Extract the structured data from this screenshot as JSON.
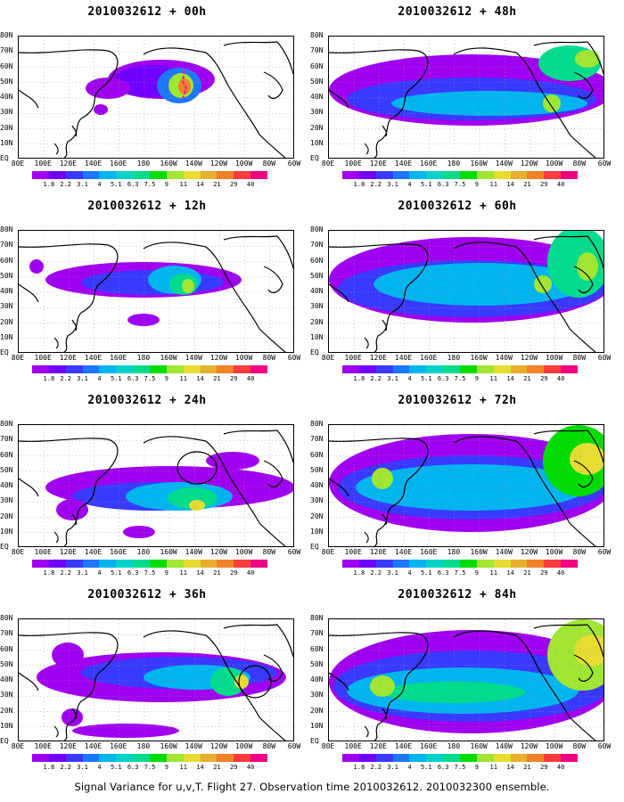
{
  "footer": "Signal Variance for u,v,T. Flight 27. Observation time 2010032612. 2010032300 ensemble.",
  "colorbar": {
    "labels": [
      "1.8",
      "2.2",
      "3.1",
      "4",
      "5.1",
      "6.3",
      "7.5",
      "9",
      "11",
      "14",
      "21",
      "29",
      "40"
    ],
    "colors": [
      "#a000f0",
      "#7000ff",
      "#3a3aff",
      "#1e78ff",
      "#00b4f0",
      "#00d2c8",
      "#00dc8c",
      "#00dc00",
      "#a0e632",
      "#e6dc32",
      "#e6af2d",
      "#f08228",
      "#fa3c3c",
      "#f00082"
    ]
  },
  "axes": {
    "y_labels": [
      "80N",
      "70N",
      "60N",
      "50N",
      "40N",
      "30N",
      "20N",
      "10N",
      "EQ"
    ],
    "x_labels": [
      "80E",
      "100E",
      "120E",
      "140E",
      "160E",
      "180",
      "160W",
      "140W",
      "120W",
      "100W",
      "80W",
      "60W"
    ]
  },
  "chart_data": [
    {
      "type": "heatmap",
      "title": "2010032612 + 00h",
      "x_range": [
        "80E",
        "60W"
      ],
      "y_range": [
        "EQ",
        "80N"
      ],
      "features": [
        {
          "name": "max",
          "value": 40,
          "lon": "160W",
          "lat": "55N"
        }
      ]
    },
    {
      "type": "heatmap",
      "title": "2010032612 + 12h",
      "x_range": [
        "80E",
        "60W"
      ],
      "y_range": [
        "EQ",
        "80N"
      ]
    },
    {
      "type": "heatmap",
      "title": "2010032612 + 24h",
      "x_range": [
        "80E",
        "60W"
      ],
      "y_range": [
        "EQ",
        "80N"
      ]
    },
    {
      "type": "heatmap",
      "title": "2010032612 + 36h",
      "x_range": [
        "80E",
        "60W"
      ],
      "y_range": [
        "EQ",
        "80N"
      ]
    },
    {
      "type": "heatmap",
      "title": "2010032612 + 48h",
      "x_range": [
        "80E",
        "60W"
      ],
      "y_range": [
        "EQ",
        "80N"
      ]
    },
    {
      "type": "heatmap",
      "title": "2010032612 + 60h",
      "x_range": [
        "80E",
        "60W"
      ],
      "y_range": [
        "EQ",
        "80N"
      ]
    },
    {
      "type": "heatmap",
      "title": "2010032612 + 72h",
      "x_range": [
        "80E",
        "60W"
      ],
      "y_range": [
        "EQ",
        "80N"
      ]
    },
    {
      "type": "heatmap",
      "title": "2010032612 + 84h",
      "x_range": [
        "80E",
        "60W"
      ],
      "y_range": [
        "EQ",
        "80N"
      ]
    }
  ]
}
